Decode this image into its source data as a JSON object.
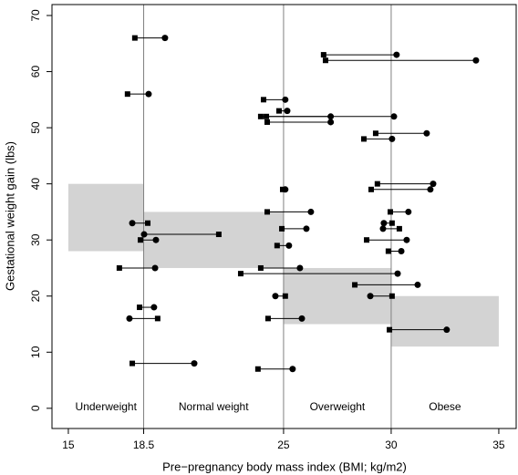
{
  "chart_data": {
    "type": "dumbbell",
    "xlabel": "Pre−pregnancy body mass index (BMI; kg/m2)",
    "ylabel": "Gestational weight gain (lbs)",
    "xlim": [
      14.24,
      35.85
    ],
    "ylim": [
      -3.6,
      71.95
    ],
    "xticks": [
      15,
      18.5,
      25,
      30,
      35
    ],
    "yticks": [
      0,
      10,
      20,
      30,
      40,
      50,
      60,
      70
    ],
    "vlines": [
      18.5,
      25,
      30
    ],
    "region_color": "#d3d3d3",
    "regions": [
      {
        "label": "Underweight",
        "xlim": [
          15,
          18.5
        ],
        "ylim": [
          28,
          40
        ]
      },
      {
        "label": "Normal weight",
        "xlim": [
          18.5,
          25
        ],
        "ylim": [
          25,
          35
        ]
      },
      {
        "label": "Overweight",
        "xlim": [
          25,
          30
        ],
        "ylim": [
          15,
          25
        ]
      },
      {
        "label": "Obese",
        "xlim": [
          30,
          35
        ],
        "ylim": [
          11,
          20
        ]
      }
    ],
    "color": "#000000",
    "points": [
      {
        "square_x": 18.09,
        "circle_x": 19.49,
        "y": 66
      },
      {
        "square_x": 17.75,
        "circle_x": 18.73,
        "y": 56
      },
      {
        "square_x": 26.86,
        "circle_x": 30.25,
        "y": 63
      },
      {
        "square_x": 26.95,
        "circle_x": 33.94,
        "y": 62
      },
      {
        "square_x": 24.07,
        "circle_x": 25.08,
        "y": 55
      },
      {
        "square_x": 24.79,
        "circle_x": 25.17,
        "y": 53
      },
      {
        "square_x": 23.94,
        "circle_x": 30.13,
        "y": 52
      },
      {
        "square_x": 24.2,
        "circle_x": 27.19,
        "y": 52
      },
      {
        "square_x": 24.24,
        "circle_x": 27.19,
        "y": 51
      },
      {
        "square_x": 29.28,
        "circle_x": 31.65,
        "y": 49
      },
      {
        "square_x": 28.73,
        "circle_x": 30.04,
        "y": 48
      },
      {
        "square_x": 29.36,
        "circle_x": 31.95,
        "y": 40
      },
      {
        "square_x": 29.07,
        "circle_x": 31.82,
        "y": 39
      },
      {
        "square_x": 24.96,
        "circle_x": 25.08,
        "y": 39
      },
      {
        "square_x": 24.24,
        "circle_x": 26.27,
        "y": 35
      },
      {
        "square_x": 29.96,
        "circle_x": 30.8,
        "y": 35
      },
      {
        "square_x": 18.69,
        "circle_x": 17.97,
        "y": 33
      },
      {
        "square_x": 30.04,
        "circle_x": 29.66,
        "y": 33
      },
      {
        "square_x": 24.92,
        "circle_x": 26.06,
        "y": 32
      },
      {
        "square_x": 30.38,
        "circle_x": 29.62,
        "y": 32
      },
      {
        "square_x": 21.99,
        "circle_x": 18.52,
        "y": 31
      },
      {
        "square_x": 18.35,
        "circle_x": 19.07,
        "y": 30
      },
      {
        "square_x": 28.86,
        "circle_x": 30.72,
        "y": 30
      },
      {
        "square_x": 24.7,
        "circle_x": 25.25,
        "y": 29
      },
      {
        "square_x": 29.87,
        "circle_x": 30.47,
        "y": 28
      },
      {
        "square_x": 17.37,
        "circle_x": 19.03,
        "y": 25
      },
      {
        "square_x": 23.94,
        "circle_x": 25.76,
        "y": 25
      },
      {
        "square_x": 23.01,
        "circle_x": 30.3,
        "y": 24
      },
      {
        "square_x": 28.31,
        "circle_x": 31.23,
        "y": 22
      },
      {
        "square_x": 25.08,
        "circle_x": 24.62,
        "y": 20
      },
      {
        "square_x": 30.04,
        "circle_x": 29.03,
        "y": 20
      },
      {
        "square_x": 18.31,
        "circle_x": 18.98,
        "y": 18
      },
      {
        "square_x": 19.15,
        "circle_x": 17.84,
        "y": 16
      },
      {
        "square_x": 24.28,
        "circle_x": 25.85,
        "y": 16
      },
      {
        "square_x": 29.92,
        "circle_x": 32.58,
        "y": 14
      },
      {
        "square_x": 17.97,
        "circle_x": 20.85,
        "y": 8
      },
      {
        "square_x": 23.81,
        "circle_x": 25.42,
        "y": 7
      }
    ]
  }
}
